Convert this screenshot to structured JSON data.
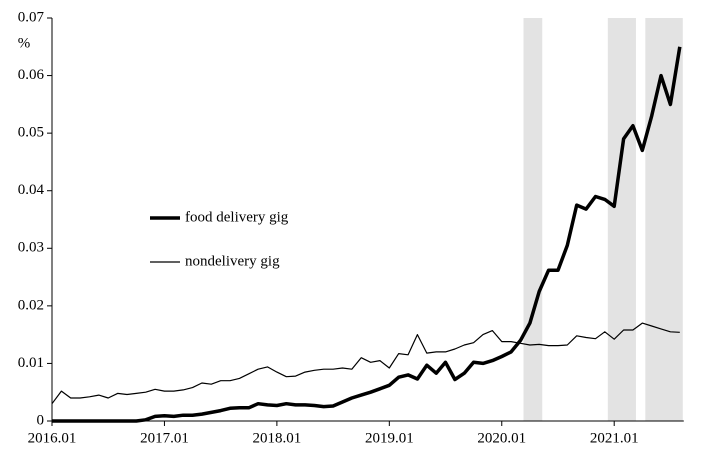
{
  "chart_data": {
    "type": "line",
    "y_label": "%",
    "x": [
      "2016.01",
      "2016.02",
      "2016.03",
      "2016.04",
      "2016.05",
      "2016.06",
      "2016.07",
      "2016.08",
      "2016.09",
      "2016.10",
      "2016.11",
      "2016.12",
      "2017.01",
      "2017.02",
      "2017.03",
      "2017.04",
      "2017.05",
      "2017.06",
      "2017.07",
      "2017.08",
      "2017.09",
      "2017.10",
      "2017.11",
      "2017.12",
      "2018.01",
      "2018.02",
      "2018.03",
      "2018.04",
      "2018.05",
      "2018.06",
      "2018.07",
      "2018.08",
      "2018.09",
      "2018.10",
      "2018.11",
      "2018.12",
      "2019.01",
      "2019.02",
      "2019.03",
      "2019.04",
      "2019.05",
      "2019.06",
      "2019.07",
      "2019.08",
      "2019.09",
      "2019.10",
      "2019.11",
      "2019.12",
      "2020.01",
      "2020.02",
      "2020.03",
      "2020.04",
      "2020.05",
      "2020.06",
      "2020.07",
      "2020.08",
      "2020.09",
      "2020.10",
      "2020.11",
      "2020.12",
      "2021.01",
      "2021.02",
      "2021.03",
      "2021.04",
      "2021.05",
      "2021.06",
      "2021.07",
      "2021.08"
    ],
    "series": [
      {
        "name": "food delivery gig",
        "color": "#000000",
        "width": 3.5,
        "values": [
          0,
          0,
          0,
          0,
          0,
          0,
          0,
          0,
          0,
          0,
          0.0002,
          0.0008,
          0.0009,
          0.0008,
          0.001,
          0.001,
          0.0012,
          0.0015,
          0.0018,
          0.0022,
          0.0023,
          0.0023,
          0.003,
          0.0028,
          0.0027,
          0.003,
          0.0028,
          0.0028,
          0.0027,
          0.0025,
          0.0026,
          0.0033,
          0.004,
          0.0045,
          0.005,
          0.0056,
          0.0062,
          0.0076,
          0.008,
          0.0073,
          0.0097,
          0.0083,
          0.0102,
          0.0072,
          0.0083,
          0.0102,
          0.01,
          0.0105,
          0.0112,
          0.012,
          0.014,
          0.017,
          0.0225,
          0.0262,
          0.0262,
          0.0305,
          0.0375,
          0.0368,
          0.039,
          0.0385,
          0.0373,
          0.049,
          0.0513,
          0.047,
          0.053,
          0.06,
          0.055,
          0.065
        ]
      },
      {
        "name": "nondelivery gig",
        "color": "#000000",
        "width": 1.2,
        "values": [
          0.003,
          0.0052,
          0.004,
          0.004,
          0.0042,
          0.0045,
          0.004,
          0.0048,
          0.0046,
          0.0048,
          0.005,
          0.0055,
          0.0052,
          0.0052,
          0.0054,
          0.0058,
          0.0066,
          0.0064,
          0.007,
          0.007,
          0.0074,
          0.0082,
          0.009,
          0.0094,
          0.0085,
          0.0077,
          0.0078,
          0.0085,
          0.0088,
          0.009,
          0.009,
          0.0092,
          0.009,
          0.011,
          0.0102,
          0.0105,
          0.0092,
          0.0117,
          0.0115,
          0.015,
          0.0118,
          0.012,
          0.012,
          0.0125,
          0.0132,
          0.0136,
          0.015,
          0.0157,
          0.0138,
          0.0138,
          0.0135,
          0.0132,
          0.0133,
          0.0131,
          0.0131,
          0.0132,
          0.0148,
          0.0145,
          0.0143,
          0.0155,
          0.0142,
          0.0158,
          0.0158,
          0.017,
          0.0165,
          0.016,
          0.0155,
          0.0154
        ]
      }
    ],
    "shaded": [
      {
        "from": "2020.03",
        "to": "2020.05"
      },
      {
        "from": "2020.12",
        "to": "2021.03"
      },
      {
        "from": "2021.04",
        "to": "2021.08"
      }
    ],
    "shade_color": "#e3e3e3",
    "ylim": [
      0,
      0.07
    ],
    "yticks": [
      0,
      0.01,
      0.02,
      0.03,
      0.04,
      0.05,
      0.06,
      0.07
    ],
    "grid": false
  }
}
